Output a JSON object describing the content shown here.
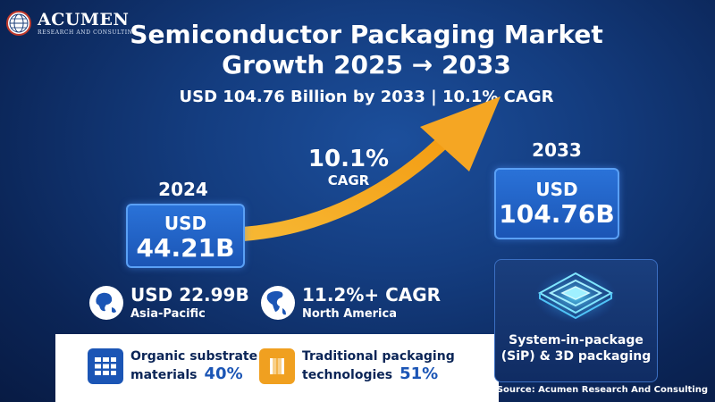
{
  "logo": {
    "name": "ACUMEN",
    "tagline": "RESEARCH AND CONSULTING"
  },
  "header": {
    "title_line1": "Semiconductor Packaging Market",
    "title_line2": "Growth 2025 → 2033",
    "subtitle": "USD 104.76 Billion by 2033 | 10.1% CAGR"
  },
  "growth": {
    "cagr_value": "10.1%",
    "cagr_label": "CAGR",
    "start": {
      "year": "2024",
      "currency": "USD",
      "amount": "44.21B"
    },
    "end": {
      "year": "2033",
      "currency": "USD",
      "amount": "104.76B"
    }
  },
  "regions": [
    {
      "value": "USD 22.99B",
      "label": "Asia-Pacific",
      "icon": "globe-asia-icon"
    },
    {
      "value": "11.2%+ CAGR",
      "label": "North America",
      "icon": "globe-americas-icon"
    }
  ],
  "segments": [
    {
      "line1": "Organic substrate",
      "line2": "materials",
      "percent": "40%",
      "icon": "substrate-grid-icon",
      "color": "#1b55b5"
    },
    {
      "line1": "Traditional packaging",
      "line2": "technologies",
      "percent": "51%",
      "icon": "package-box-icon",
      "color": "#f0a020"
    }
  ],
  "sip": {
    "line1": "System-in-package",
    "line2": "(SiP) & 3D packaging",
    "icon": "stacked-chip-icon"
  },
  "source": "Source: Acumen Research And Consulting",
  "colors": {
    "arrow": "#f5a623",
    "box": "#1b55b5",
    "background": "#0b2557"
  }
}
